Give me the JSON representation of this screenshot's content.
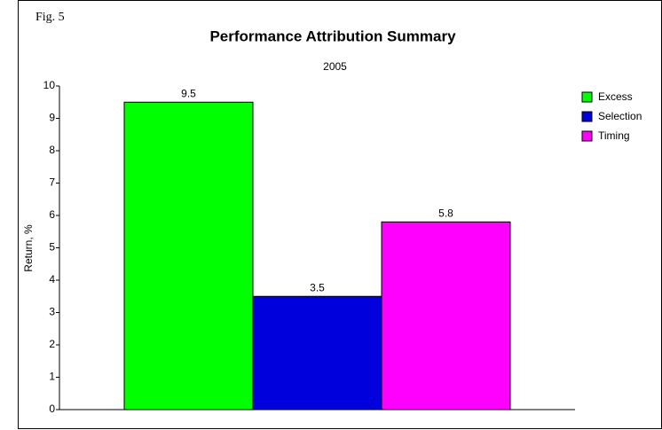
{
  "chart_data": {
    "type": "bar",
    "title": "Performance Attribution Summary",
    "annotation": "Fig. 5",
    "ylabel": "Return, %",
    "categories": [
      "2005"
    ],
    "series": [
      {
        "name": "Excess",
        "color": "#00ff00",
        "values": [
          9.5
        ]
      },
      {
        "name": "Selection",
        "color": "#0000dd",
        "values": [
          3.5
        ]
      },
      {
        "name": "Timing",
        "color": "#ff00ff",
        "values": [
          5.8
        ]
      }
    ],
    "ylim": [
      0,
      10
    ],
    "yticks": [
      0,
      1,
      2,
      3,
      4,
      5,
      6,
      7,
      8,
      9,
      10
    ],
    "grid": false,
    "legend": "right"
  }
}
